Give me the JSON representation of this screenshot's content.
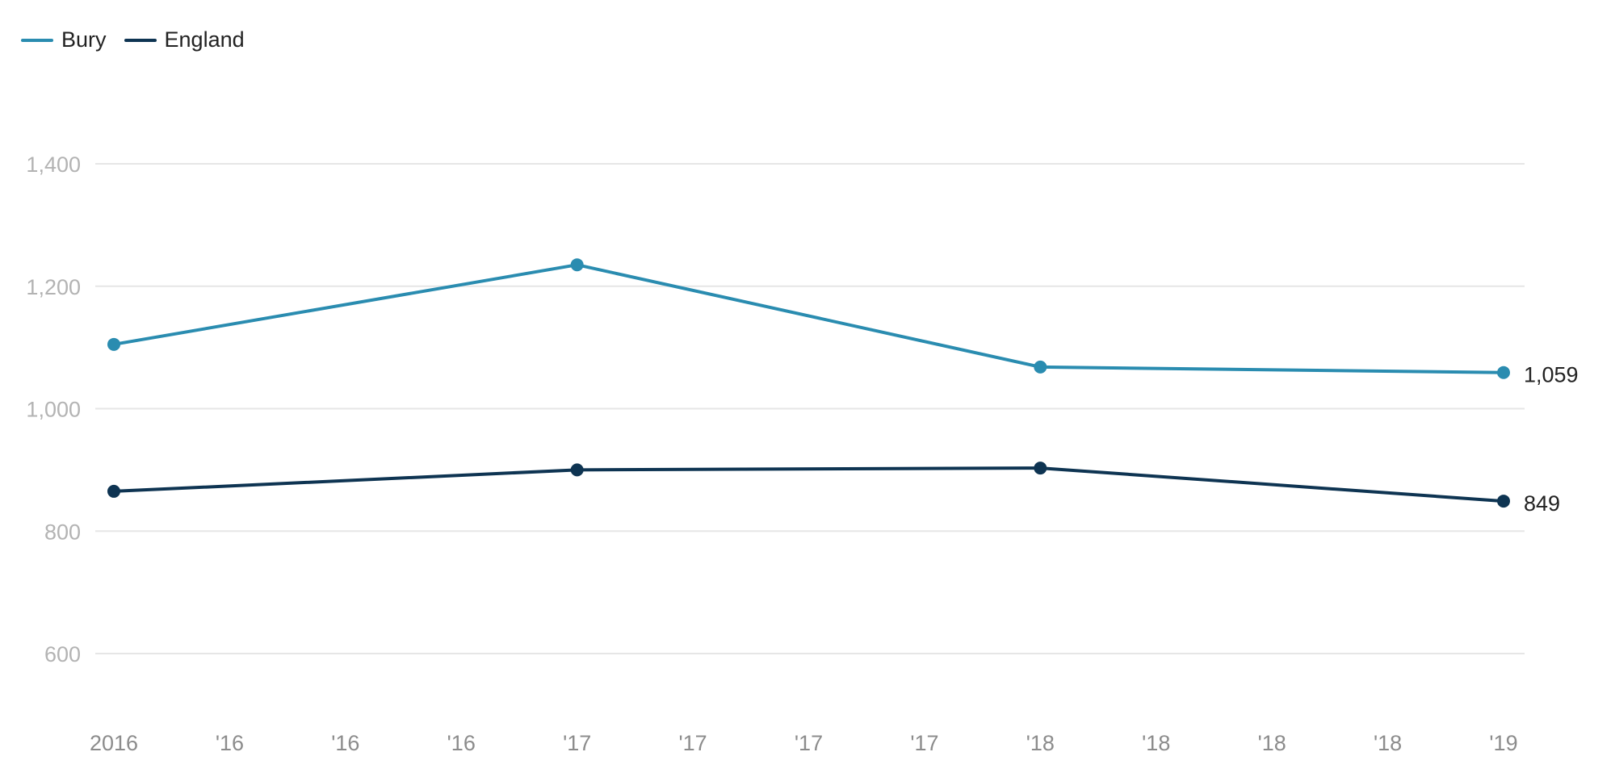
{
  "chart_data": {
    "type": "line",
    "x_tick_labels": [
      "2016",
      "'16",
      "'16",
      "'16",
      "'17",
      "'17",
      "'17",
      "'17",
      "'18",
      "'18",
      "'18",
      "'18",
      "'19"
    ],
    "y_ticks": [
      600,
      800,
      1000,
      1200,
      1400
    ],
    "y_tick_labels": [
      "600",
      "800",
      "1,000",
      "1,200",
      "1,400"
    ],
    "ylim": [
      500,
      1500
    ],
    "grid": true,
    "legend_placement": "top-left",
    "series": [
      {
        "name": "Bury",
        "color": "#2a8cb0",
        "points": [
          {
            "x_index": 0,
            "y": 1105
          },
          {
            "x_index": 4,
            "y": 1235
          },
          {
            "x_index": 8,
            "y": 1068
          },
          {
            "x_index": 12,
            "y": 1059
          }
        ],
        "end_label": "1,059"
      },
      {
        "name": "England",
        "color": "#0e3452",
        "points": [
          {
            "x_index": 0,
            "y": 865
          },
          {
            "x_index": 4,
            "y": 900
          },
          {
            "x_index": 8,
            "y": 903
          },
          {
            "x_index": 12,
            "y": 849
          }
        ],
        "end_label": "849"
      }
    ]
  }
}
